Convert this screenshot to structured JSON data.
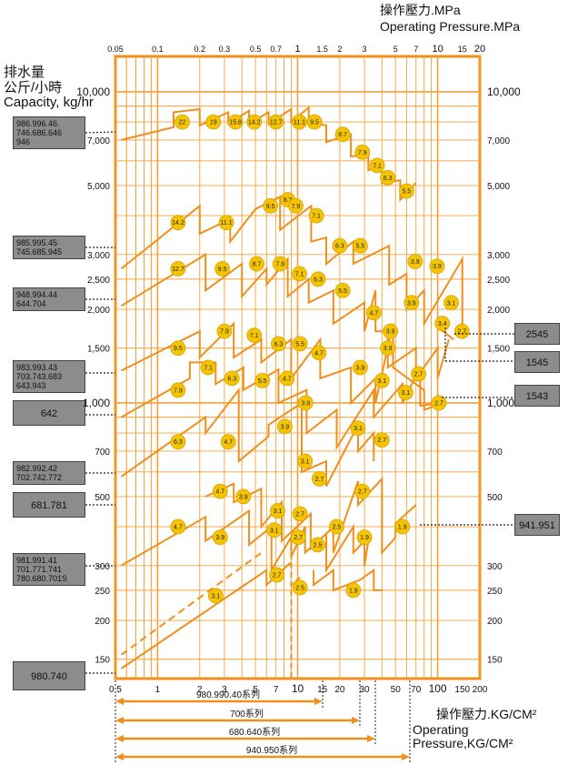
{
  "header": {
    "title_zh": "操作壓力.MPa",
    "title_en": "Operating Pressure.MPa"
  },
  "left_title": {
    "zh1": "排水量",
    "zh2": "公斤/小時",
    "en": "Capacity, kg/hr"
  },
  "bottom_title": {
    "zh": "操作壓力.KG/CM²",
    "en": "Operating Pressure,KG/CM²"
  },
  "colors": {
    "grid": "#f4a13a",
    "frame": "#ef8f1c",
    "curve": "#ef8f1c",
    "marker_fill": "#f5c400",
    "box_fill": "#8c8c8c"
  },
  "chart_data": {
    "type": "line",
    "x_scale": "log",
    "y_scale": "log",
    "xlim_kgcm2": [
      0.5,
      200
    ],
    "ylim_kg_hr": [
      130,
      13000
    ],
    "x_ticks_top_mpa": [
      "0.05",
      "0.1",
      "0.2",
      "0.3",
      "0.5",
      "0.7",
      "1",
      "1.5",
      "2",
      "3",
      "5",
      "7",
      "10",
      "15",
      "20"
    ],
    "x_ticks_bottom_kgcm2": [
      "0.5",
      "1",
      "2",
      "3",
      "5",
      "7",
      "10",
      "15",
      "20",
      "30",
      "50",
      "70",
      "100",
      "150",
      "200"
    ],
    "y_ticks_left": [
      "10,000",
      "7,000",
      "5,000",
      "3,000",
      "2,500",
      "2,000",
      "1,500",
      "1,000",
      "700",
      "500",
      "300",
      "250",
      "200",
      "150"
    ],
    "y_ticks_right": [
      "10,000",
      "7,000",
      "5,000",
      "3,000",
      "2,500",
      "2,000",
      "1,500",
      "1,000",
      "700",
      "500",
      "300",
      "250",
      "200",
      "150"
    ],
    "series": [
      {
        "group": "986.996.46",
        "markers": [
          {
            "label": "22",
            "x": 1.5,
            "y": 8000
          },
          {
            "label": "19",
            "x": 2.5,
            "y": 8000
          },
          {
            "label": "15.8",
            "x": 3.6,
            "y": 8000
          },
          {
            "label": "14.2",
            "x": 4.9,
            "y": 8000
          },
          {
            "label": "12.7",
            "x": 7.0,
            "y": 8000
          },
          {
            "label": "11.1",
            "x": 10.3,
            "y": 8000
          },
          {
            "label": "9.5",
            "x": 13.2,
            "y": 8000
          },
          {
            "label": "8.7",
            "x": 21,
            "y": 7300
          },
          {
            "label": "7.9",
            "x": 29,
            "y": 6400
          },
          {
            "label": "7.1",
            "x": 37,
            "y": 5800
          },
          {
            "label": "6.3",
            "x": 44,
            "y": 5300
          },
          {
            "label": "5.5",
            "x": 60,
            "y": 4800
          }
        ]
      },
      {
        "group": "985.995.45",
        "markers": [
          {
            "label": "14.2",
            "x": 1.4,
            "y": 3800
          },
          {
            "label": "11.1",
            "x": 3.1,
            "y": 3800
          },
          {
            "label": "9.5",
            "x": 6.4,
            "y": 4300
          },
          {
            "label": "8.7",
            "x": 8.5,
            "y": 4500
          },
          {
            "label": "7.9",
            "x": 9.7,
            "y": 4300
          },
          {
            "label": "7.1",
            "x": 13.6,
            "y": 4000
          },
          {
            "label": "6.3",
            "x": 20,
            "y": 3200
          },
          {
            "label": "5.5",
            "x": 28,
            "y": 3200
          }
        ]
      },
      {
        "group": "948.994.44",
        "markers": [
          {
            "label": "12.7",
            "x": 1.4,
            "y": 2700
          },
          {
            "label": "9.5",
            "x": 2.9,
            "y": 2700
          },
          {
            "label": "8.7",
            "x": 5.1,
            "y": 2800
          },
          {
            "label": "7.9",
            "x": 7.5,
            "y": 2800
          },
          {
            "label": "7.1",
            "x": 10.3,
            "y": 2600
          },
          {
            "label": "6.3",
            "x": 14,
            "y": 2500
          },
          {
            "label": "5.5",
            "x": 21,
            "y": 2300
          },
          {
            "label": "4.7",
            "x": 35,
            "y": 1950
          },
          {
            "label": "3.9",
            "x": 65,
            "y": 2100
          },
          {
            "label": "3.9",
            "x": 99,
            "y": 2750
          },
          {
            "label": "3.9",
            "x": 69,
            "y": 2850
          },
          {
            "label": "3.1",
            "x": 125,
            "y": 2100
          },
          {
            "label": "3.4",
            "x": 108,
            "y": 1800
          },
          {
            "label": "2.7",
            "x": 149,
            "y": 1700
          }
        ]
      },
      {
        "group": "983.993.43",
        "markers": [
          {
            "label": "9.5",
            "x": 1.4,
            "y": 1500
          },
          {
            "label": "7.9",
            "x": 3.0,
            "y": 1700
          },
          {
            "label": "7.1",
            "x": 4.9,
            "y": 1650
          },
          {
            "label": "6.3",
            "x": 7.3,
            "y": 1550
          },
          {
            "label": "5.5",
            "x": 10.4,
            "y": 1550
          },
          {
            "label": "4.7",
            "x": 14.2,
            "y": 1450
          },
          {
            "label": "3.9",
            "x": 46,
            "y": 1700
          },
          {
            "label": "3.9",
            "x": 44,
            "y": 1500
          },
          {
            "label": "3.9",
            "x": 28,
            "y": 1300
          }
        ]
      },
      {
        "group": "642",
        "markers": [
          {
            "label": "7.9",
            "x": 1.4,
            "y": 1100
          },
          {
            "label": "7.1",
            "x": 2.3,
            "y": 1300
          },
          {
            "label": "6.3",
            "x": 3.4,
            "y": 1200
          },
          {
            "label": "5.5",
            "x": 5.6,
            "y": 1180
          },
          {
            "label": "4.7",
            "x": 8.4,
            "y": 1200
          },
          {
            "label": "3.9",
            "x": 11.4,
            "y": 1000
          },
          {
            "label": "3.1",
            "x": 40,
            "y": 1180
          },
          {
            "label": "3.1",
            "x": 59,
            "y": 1080
          },
          {
            "label": "2.7",
            "x": 73,
            "y": 1240
          },
          {
            "label": "2.7",
            "x": 102,
            "y": 1000
          }
        ]
      },
      {
        "group": "982.992.42",
        "markers": [
          {
            "label": "6.3",
            "x": 1.4,
            "y": 750
          },
          {
            "label": "4.7",
            "x": 3.2,
            "y": 750
          },
          {
            "label": "3.9",
            "x": 8.1,
            "y": 840
          },
          {
            "label": "3.1",
            "x": 11.3,
            "y": 650
          },
          {
            "label": "3.1",
            "x": 27,
            "y": 830
          },
          {
            "label": "2.7",
            "x": 40,
            "y": 760
          },
          {
            "label": "2.7",
            "x": 14.3,
            "y": 570
          }
        ]
      },
      {
        "group": "681.781",
        "markers": [
          {
            "label": "4.7",
            "x": 2.8,
            "y": 520
          },
          {
            "label": "3.9",
            "x": 4.1,
            "y": 500
          },
          {
            "label": "3.1",
            "x": 7.2,
            "y": 450
          },
          {
            "label": "2.7",
            "x": 10.4,
            "y": 440
          },
          {
            "label": "2.7",
            "x": 29,
            "y": 520
          },
          {
            "label": "2.5",
            "x": 19,
            "y": 400
          },
          {
            "label": "1.9",
            "x": 30,
            "y": 370
          },
          {
            "label": "1.9",
            "x": 56,
            "y": 400
          }
        ]
      },
      {
        "group": "981.991.41",
        "markers": [
          {
            "label": "4.7",
            "x": 1.4,
            "y": 400
          },
          {
            "label": "3.9",
            "x": 2.8,
            "y": 370
          },
          {
            "label": "3.1",
            "x": 6.8,
            "y": 390
          },
          {
            "label": "2.7",
            "x": 10.1,
            "y": 370
          },
          {
            "label": "2.5",
            "x": 13.9,
            "y": 350
          },
          {
            "label": "2.7",
            "x": 7.1,
            "y": 280
          }
        ]
      },
      {
        "group": "980.740",
        "markers": [
          {
            "label": "3.1",
            "x": 2.6,
            "y": 240
          },
          {
            "label": "2.5",
            "x": 10.4,
            "y": 255
          },
          {
            "label": "1.9",
            "x": 25,
            "y": 250
          }
        ]
      }
    ]
  },
  "labels": {
    "boxes": [
      {
        "key": "b1",
        "text": "986.996.46.\n746.686.646\n946"
      },
      {
        "key": "b2",
        "text": "985.995.45\n745.685.945"
      },
      {
        "key": "b3",
        "text": "948.994.44\n644.704"
      },
      {
        "key": "b4",
        "text": "983.993.43\n703.743.683\n643.943"
      },
      {
        "key": "b5",
        "text": "642"
      },
      {
        "key": "b6",
        "text": "982.992.42\n702.742.772"
      },
      {
        "key": "b7",
        "text": "681.781"
      },
      {
        "key": "b8",
        "text": "981.991.41\n701.771.741\n780.680.701S"
      },
      {
        "key": "b9",
        "text": "980.740"
      }
    ],
    "right_boxes": [
      {
        "key": "r1",
        "text": "2545"
      },
      {
        "key": "r2",
        "text": "1545"
      },
      {
        "key": "r3",
        "text": "1543"
      },
      {
        "key": "r4",
        "text": "941.951"
      }
    ],
    "ranges": [
      {
        "text": "980.990.40系列"
      },
      {
        "text": "700系列"
      },
      {
        "text": "680.640系列"
      },
      {
        "text": "940.950系列"
      }
    ]
  }
}
